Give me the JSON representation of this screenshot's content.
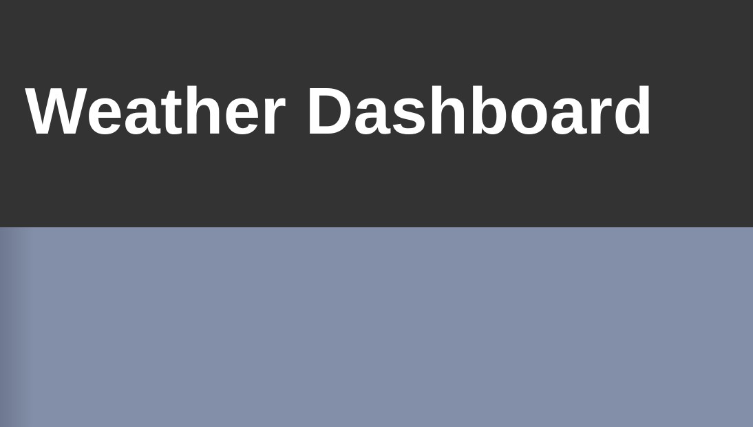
{
  "header": {
    "title": "Weather Dashboard"
  },
  "colors": {
    "header_bg": "#333333",
    "title_text": "#ffffff",
    "main_bg": "#838ea8"
  }
}
